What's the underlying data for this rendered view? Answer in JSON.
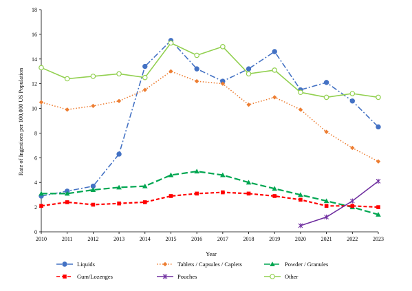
{
  "chart_data": {
    "type": "line",
    "xlabel": "Year",
    "ylabel": "Rate of Ingestions per 100,000 US Population",
    "x": [
      2010,
      2011,
      2012,
      2013,
      2014,
      2015,
      2016,
      2017,
      2018,
      2019,
      2020,
      2021,
      2022,
      2023
    ],
    "xlim": [
      2010,
      2023
    ],
    "ylim": [
      0,
      18
    ],
    "yticks": [
      0,
      2,
      4,
      6,
      8,
      10,
      12,
      14,
      16,
      18
    ],
    "grid": false,
    "legend_position": "bottom",
    "series": [
      {
        "name": "Liquids",
        "color": "#4472c4",
        "dash": "dashdot",
        "marker": "circle",
        "values": [
          2.9,
          3.3,
          3.7,
          6.3,
          13.4,
          15.5,
          13.2,
          12.2,
          13.2,
          14.6,
          11.5,
          12.1,
          10.6,
          8.5
        ]
      },
      {
        "name": "Tablets / Capsules / Caplets",
        "color": "#ed7d31",
        "dash": "dot",
        "marker": "diamond",
        "values": [
          10.5,
          9.9,
          10.2,
          10.6,
          11.5,
          13.0,
          12.2,
          12.0,
          10.3,
          10.9,
          9.9,
          8.1,
          6.8,
          5.7
        ]
      },
      {
        "name": "Powder / Granules",
        "color": "#00a651",
        "dash": "longdash",
        "marker": "triangle",
        "values": [
          3.1,
          3.1,
          3.4,
          3.6,
          3.7,
          4.6,
          4.9,
          4.6,
          4.0,
          3.5,
          3.0,
          2.5,
          2.0,
          1.4
        ]
      },
      {
        "name": "Gum/Lozenges",
        "color": "#ff0000",
        "dash": "dash",
        "marker": "square",
        "values": [
          2.1,
          2.4,
          2.2,
          2.3,
          2.4,
          2.9,
          3.1,
          3.2,
          3.1,
          2.9,
          2.6,
          2.1,
          2.1,
          2.0
        ]
      },
      {
        "name": "Pouches",
        "color": "#7030a0",
        "dash": "solid",
        "marker": "x",
        "values": [
          null,
          null,
          null,
          null,
          null,
          null,
          null,
          null,
          null,
          null,
          0.5,
          1.2,
          2.5,
          4.1
        ]
      },
      {
        "name": "Other",
        "color": "#92d050",
        "dash": "solid",
        "marker": "circle-open",
        "values": [
          13.3,
          12.4,
          12.6,
          12.8,
          12.5,
          15.3,
          14.3,
          15.0,
          12.8,
          13.1,
          11.3,
          10.9,
          11.2,
          10.9
        ]
      }
    ]
  }
}
